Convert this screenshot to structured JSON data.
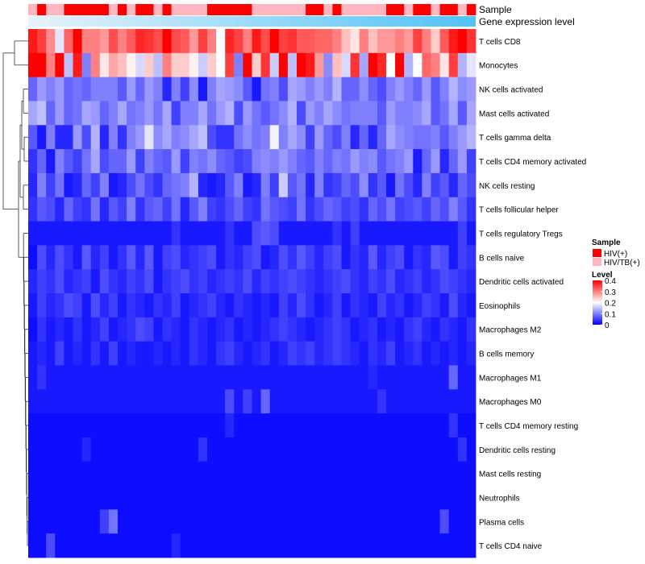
{
  "chart_data": {
    "type": "heatmap",
    "title": "",
    "annotations": [
      {
        "name": "Sample",
        "values": [
          "HIV/TB(+)",
          "HIV(+)",
          "HIV/TB(+)",
          "HIV/TB(+)",
          "HIV(+)",
          "HIV(+)",
          "HIV(+)",
          "HIV(+)",
          "HIV(+)",
          "HIV/TB(+)",
          "HIV(+)",
          "HIV/TB(+)",
          "HIV(+)",
          "HIV(+)",
          "HIV/TB(+)",
          "HIV(+)",
          "HIV/TB(+)",
          "HIV/TB(+)",
          "HIV/TB(+)",
          "HIV/TB(+)",
          "HIV(+)",
          "HIV(+)",
          "HIV(+)",
          "HIV(+)",
          "HIV(+)",
          "HIV/TB(+)",
          "HIV/TB(+)",
          "HIV/TB(+)",
          "HIV/TB(+)",
          "HIV/TB(+)",
          "HIV/TB(+)",
          "HIV(+)",
          "HIV(+)",
          "HIV/TB(+)",
          "HIV(+)",
          "HIV/TB(+)",
          "HIV/TB(+)",
          "HIV/TB(+)",
          "HIV/TB(+)",
          "HIV/TB(+)",
          "HIV(+)",
          "HIV(+)",
          "HIV/TB(+)",
          "HIV(+)",
          "HIV(+)",
          "HIV/TB(+)",
          "HIV(+)",
          "HIV(+)",
          "HIV/TB(+)",
          "HIV(+)"
        ]
      },
      {
        "name": "Gene expression level",
        "type": "gradient",
        "from": "#e8f3fb",
        "to": "#4fc3f7"
      }
    ],
    "rows": [
      "T cells CD8",
      "Monocytes",
      "NK cells activated",
      "Mast cells activated",
      "T cells gamma delta",
      "T cells CD4 memory activated",
      "NK cells resting",
      "T cells follicular helper",
      "T cells regulatory  Tregs",
      "B cells naive",
      "Dendritic cells activated",
      "Eosinophils",
      "Macrophages M2",
      "B cells memory",
      "Macrophages M1",
      "Macrophages M0",
      "T cells CD4 memory resting",
      "Dendritic cells resting",
      "Mast cells resting",
      "Neutrophils",
      "Plasma cells",
      "T cells CD4 naive"
    ],
    "n_samples": 50,
    "legend_sample": {
      "title": "Sample",
      "items": [
        {
          "label": "HIV(+)",
          "color": "#ff0000"
        },
        {
          "label": "HIV/TB(+)",
          "color": "#ffb6c1"
        }
      ]
    },
    "legend_level": {
      "title": "Level",
      "ticks": [
        0.4,
        0.3,
        0.2,
        0.1,
        0
      ],
      "range": [
        0,
        0.4
      ],
      "colors": [
        "#0000ff",
        "#ffffff",
        "#ff0000"
      ]
    },
    "matrix": [
      [
        0.38,
        0.35,
        0.29,
        0.18,
        0.32,
        0.4,
        0.3,
        0.3,
        0.28,
        0.34,
        0.3,
        0.33,
        0.37,
        0.36,
        0.34,
        0.4,
        0.34,
        0.33,
        0.28,
        0.35,
        0.3,
        0.2,
        0.37,
        0.35,
        0.3,
        0.38,
        0.34,
        0.4,
        0.35,
        0.36,
        0.33,
        0.33,
        0.32,
        0.32,
        0.3,
        0.25,
        0.22,
        0.3,
        0.25,
        0.28,
        0.28,
        0.3,
        0.28,
        0.35,
        0.3,
        0.24,
        0.33,
        0.38,
        0.4,
        0.36
      ],
      [
        0.4,
        0.4,
        0.3,
        0.4,
        0.15,
        0.38,
        0.1,
        0.3,
        0.22,
        0.27,
        0.25,
        0.21,
        0.17,
        0.24,
        0.15,
        0.3,
        0.24,
        0.24,
        0.21,
        0.16,
        0.24,
        0.2,
        0.35,
        0.1,
        0.4,
        0.24,
        0.36,
        0.16,
        0.4,
        0.15,
        0.4,
        0.38,
        0.28,
        0.11,
        0.25,
        0.17,
        0.36,
        0.13,
        0.4,
        0.37,
        0.2,
        0.4,
        0.14,
        0.2,
        0.32,
        0.3,
        0.22,
        0.35,
        0.14,
        0.18
      ],
      [
        0.08,
        0.12,
        0.1,
        0.12,
        0.08,
        0.09,
        0.08,
        0.1,
        0.1,
        0.1,
        0.07,
        0.12,
        0.08,
        0.12,
        0.1,
        0.03,
        0.1,
        0.05,
        0.11,
        0.02,
        0.1,
        0.13,
        0.12,
        0.11,
        0.07,
        0.02,
        0.09,
        0.1,
        0.06,
        0.13,
        0.12,
        0.1,
        0.12,
        0.1,
        0.14,
        0.08,
        0.08,
        0.11,
        0.08,
        0.06,
        0.1,
        0.12,
        0.1,
        0.08,
        0.12,
        0.07,
        0.1,
        0.14,
        0.11,
        0.12
      ],
      [
        0.13,
        0.15,
        0.08,
        0.12,
        0.08,
        0.09,
        0.13,
        0.12,
        0.08,
        0.1,
        0.13,
        0.09,
        0.1,
        0.12,
        0.09,
        0.13,
        0.05,
        0.1,
        0.1,
        0.13,
        0.09,
        0.12,
        0.14,
        0.06,
        0.12,
        0.09,
        0.07,
        0.09,
        0.11,
        0.14,
        0.06,
        0.12,
        0.1,
        0.13,
        0.11,
        0.09,
        0.1,
        0.1,
        0.1,
        0.07,
        0.12,
        0.1,
        0.1,
        0.11,
        0.13,
        0.07,
        0.09,
        0.13,
        0.07,
        0.13
      ],
      [
        0.07,
        0.02,
        0.1,
        0.03,
        0.03,
        0.12,
        0.06,
        0.14,
        0.03,
        0.1,
        0.04,
        0.1,
        0.12,
        0.18,
        0.11,
        0.13,
        0.1,
        0.11,
        0.13,
        0.15,
        0.06,
        0.04,
        0.04,
        0.09,
        0.11,
        0.09,
        0.1,
        0.19,
        0.1,
        0.13,
        0.11,
        0.05,
        0.12,
        0.08,
        0.06,
        0.1,
        0.03,
        0.08,
        0.03,
        0.08,
        0.13,
        0.11,
        0.1,
        0.09,
        0.09,
        0.1,
        0.07,
        0.1,
        0.12,
        0.14
      ],
      [
        0.04,
        0.08,
        0.02,
        0.1,
        0.07,
        0.05,
        0.09,
        0.13,
        0.06,
        0.08,
        0.08,
        0.12,
        0.05,
        0.1,
        0.08,
        0.07,
        0.12,
        0.05,
        0.1,
        0.09,
        0.11,
        0.08,
        0.07,
        0.05,
        0.06,
        0.1,
        0.11,
        0.1,
        0.12,
        0.1,
        0.08,
        0.07,
        0.1,
        0.08,
        0.1,
        0.09,
        0.12,
        0.1,
        0.11,
        0.07,
        0.09,
        0.1,
        0.12,
        0.02,
        0.08,
        0.12,
        0.03,
        0.08,
        0.12,
        0.05
      ],
      [
        0.03,
        0.1,
        0.05,
        0.09,
        0.02,
        0.03,
        0.08,
        0.05,
        0.1,
        0.02,
        0.03,
        0.06,
        0.09,
        0.06,
        0.04,
        0.08,
        0.09,
        0.1,
        0.14,
        0.03,
        0.02,
        0.03,
        0.07,
        0.1,
        0.02,
        0.03,
        0.1,
        0.05,
        0.16,
        0.07,
        0.09,
        0.03,
        0.1,
        0.04,
        0.05,
        0.08,
        0.06,
        0.11,
        0.04,
        0.07,
        0.02,
        0.09,
        0.06,
        0.03,
        0.1,
        0.05,
        0.07,
        0.03,
        0.08,
        0.06
      ],
      [
        0.04,
        0.07,
        0.06,
        0.03,
        0.08,
        0.05,
        0.04,
        0.09,
        0.03,
        0.07,
        0.05,
        0.1,
        0.04,
        0.07,
        0.08,
        0.05,
        0.09,
        0.03,
        0.07,
        0.1,
        0.05,
        0.04,
        0.06,
        0.08,
        0.05,
        0.04,
        0.09,
        0.07,
        0.06,
        0.05,
        0.09,
        0.04,
        0.06,
        0.08,
        0.07,
        0.05,
        0.06,
        0.04,
        0.08,
        0.06,
        0.09,
        0.05,
        0.06,
        0.07,
        0.05,
        0.08,
        0.06,
        0.1,
        0.07,
        0.04
      ],
      [
        0.02,
        0.02,
        0.02,
        0.02,
        0.02,
        0.02,
        0.02,
        0.02,
        0.02,
        0.02,
        0.02,
        0.02,
        0.02,
        0.02,
        0.02,
        0.02,
        0.04,
        0.02,
        0.02,
        0.02,
        0.02,
        0.02,
        0.04,
        0.02,
        0.02,
        0.06,
        0.07,
        0.06,
        0.02,
        0.02,
        0.02,
        0.02,
        0.02,
        0.02,
        0.04,
        0.02,
        0.05,
        0.02,
        0.02,
        0.02,
        0.02,
        0.02,
        0.02,
        0.02,
        0.02,
        0.02,
        0.02,
        0.02,
        0.05,
        0.02
      ],
      [
        0.01,
        0.06,
        0.03,
        0.06,
        0.04,
        0.02,
        0.07,
        0.03,
        0.05,
        0.02,
        0.04,
        0.07,
        0.03,
        0.07,
        0.02,
        0.05,
        0.06,
        0.03,
        0.04,
        0.05,
        0.06,
        0.02,
        0.04,
        0.03,
        0.05,
        0.06,
        0.02,
        0.03,
        0.06,
        0.04,
        0.07,
        0.05,
        0.03,
        0.05,
        0.06,
        0.02,
        0.04,
        0.03,
        0.07,
        0.03,
        0.05,
        0.06,
        0.02,
        0.04,
        0.03,
        0.07,
        0.06,
        0.02,
        0.05,
        0.04
      ],
      [
        0.03,
        0.05,
        0.04,
        0.06,
        0.03,
        0.04,
        0.05,
        0.02,
        0.06,
        0.04,
        0.03,
        0.05,
        0.04,
        0.06,
        0.02,
        0.04,
        0.05,
        0.06,
        0.04,
        0.05,
        0.03,
        0.04,
        0.05,
        0.04,
        0.06,
        0.03,
        0.05,
        0.04,
        0.05,
        0.06,
        0.05,
        0.04,
        0.03,
        0.04,
        0.05,
        0.06,
        0.04,
        0.03,
        0.05,
        0.04,
        0.06,
        0.03,
        0.04,
        0.05,
        0.03,
        0.04,
        0.06,
        0.05,
        0.04,
        0.03
      ],
      [
        0.02,
        0.05,
        0.03,
        0.04,
        0.06,
        0.05,
        0.02,
        0.06,
        0.03,
        0.05,
        0.02,
        0.04,
        0.03,
        0.02,
        0.04,
        0.03,
        0.05,
        0.02,
        0.03,
        0.04,
        0.05,
        0.03,
        0.02,
        0.04,
        0.03,
        0.02,
        0.03,
        0.02,
        0.05,
        0.03,
        0.06,
        0.04,
        0.02,
        0.03,
        0.05,
        0.02,
        0.04,
        0.03,
        0.02,
        0.05,
        0.03,
        0.04,
        0.02,
        0.03,
        0.05,
        0.04,
        0.02,
        0.06,
        0.03,
        0.02
      ],
      [
        0.01,
        0.04,
        0.02,
        0.03,
        0.02,
        0.04,
        0.02,
        0.03,
        0.05,
        0.02,
        0.03,
        0.04,
        0.06,
        0.05,
        0.02,
        0.04,
        0.03,
        0.02,
        0.04,
        0.03,
        0.02,
        0.03,
        0.04,
        0.02,
        0.03,
        0.02,
        0.03,
        0.04,
        0.05,
        0.04,
        0.03,
        0.02,
        0.03,
        0.04,
        0.05,
        0.04,
        0.02,
        0.03,
        0.04,
        0.02,
        0.03,
        0.02,
        0.04,
        0.05,
        0.03,
        0.02,
        0.04,
        0.03,
        0.02,
        0.04
      ],
      [
        0.02,
        0.03,
        0.02,
        0.05,
        0.02,
        0.03,
        0.02,
        0.04,
        0.02,
        0.05,
        0.02,
        0.03,
        0.02,
        0.02,
        0.03,
        0.02,
        0.03,
        0.02,
        0.04,
        0.03,
        0.02,
        0.04,
        0.05,
        0.03,
        0.02,
        0.03,
        0.04,
        0.02,
        0.03,
        0.05,
        0.04,
        0.05,
        0.03,
        0.04,
        0.05,
        0.04,
        0.03,
        0.02,
        0.04,
        0.03,
        0.05,
        0.02,
        0.03,
        0.04,
        0.02,
        0.03,
        0.02,
        0.03,
        0.02,
        0.03
      ],
      [
        0.02,
        0.04,
        0.02,
        0.02,
        0.02,
        0.02,
        0.02,
        0.02,
        0.02,
        0.02,
        0.02,
        0.02,
        0.02,
        0.02,
        0.02,
        0.02,
        0.02,
        0.02,
        0.02,
        0.02,
        0.02,
        0.02,
        0.02,
        0.02,
        0.02,
        0.02,
        0.02,
        0.02,
        0.02,
        0.02,
        0.02,
        0.02,
        0.02,
        0.02,
        0.02,
        0.02,
        0.02,
        0.02,
        0.03,
        0.02,
        0.02,
        0.02,
        0.02,
        0.02,
        0.02,
        0.02,
        0.02,
        0.08,
        0.02,
        0.02
      ],
      [
        0.02,
        0.02,
        0.02,
        0.02,
        0.02,
        0.02,
        0.02,
        0.02,
        0.02,
        0.02,
        0.02,
        0.02,
        0.02,
        0.02,
        0.02,
        0.02,
        0.02,
        0.02,
        0.02,
        0.02,
        0.02,
        0.02,
        0.06,
        0.02,
        0.05,
        0.02,
        0.08,
        0.02,
        0.02,
        0.02,
        0.02,
        0.02,
        0.02,
        0.02,
        0.02,
        0.02,
        0.02,
        0.02,
        0.02,
        0.04,
        0.02,
        0.02,
        0.02,
        0.02,
        0.02,
        0.02,
        0.02,
        0.02,
        0.02,
        0.02
      ],
      [
        0.01,
        0.01,
        0.01,
        0.01,
        0.01,
        0.01,
        0.01,
        0.01,
        0.01,
        0.01,
        0.01,
        0.01,
        0.01,
        0.01,
        0.01,
        0.01,
        0.01,
        0.01,
        0.01,
        0.01,
        0.01,
        0.01,
        0.03,
        0.01,
        0.01,
        0.01,
        0.01,
        0.01,
        0.01,
        0.01,
        0.01,
        0.01,
        0.01,
        0.01,
        0.01,
        0.01,
        0.01,
        0.01,
        0.01,
        0.01,
        0.01,
        0.01,
        0.01,
        0.01,
        0.01,
        0.01,
        0.01,
        0.04,
        0.01,
        0.01
      ],
      [
        0.01,
        0.01,
        0.01,
        0.01,
        0.01,
        0.01,
        0.03,
        0.01,
        0.01,
        0.01,
        0.01,
        0.01,
        0.01,
        0.01,
        0.01,
        0.01,
        0.01,
        0.01,
        0.01,
        0.04,
        0.01,
        0.01,
        0.01,
        0.01,
        0.01,
        0.01,
        0.01,
        0.01,
        0.01,
        0.01,
        0.01,
        0.01,
        0.01,
        0.01,
        0.01,
        0.01,
        0.01,
        0.01,
        0.01,
        0.01,
        0.01,
        0.01,
        0.01,
        0.01,
        0.01,
        0.01,
        0.01,
        0.01,
        0.04,
        0.01
      ],
      [
        0.01,
        0.01,
        0.01,
        0.01,
        0.01,
        0.01,
        0.01,
        0.01,
        0.01,
        0.01,
        0.01,
        0.01,
        0.01,
        0.01,
        0.01,
        0.01,
        0.01,
        0.01,
        0.01,
        0.01,
        0.01,
        0.01,
        0.01,
        0.01,
        0.01,
        0.01,
        0.01,
        0.01,
        0.01,
        0.01,
        0.01,
        0.01,
        0.01,
        0.01,
        0.01,
        0.01,
        0.01,
        0.01,
        0.01,
        0.01,
        0.01,
        0.01,
        0.01,
        0.01,
        0.01,
        0.01,
        0.01,
        0.01,
        0.01,
        0.01
      ],
      [
        0.01,
        0.01,
        0.01,
        0.01,
        0.01,
        0.01,
        0.01,
        0.01,
        0.01,
        0.01,
        0.01,
        0.01,
        0.01,
        0.01,
        0.01,
        0.01,
        0.01,
        0.01,
        0.01,
        0.01,
        0.01,
        0.01,
        0.01,
        0.01,
        0.01,
        0.01,
        0.01,
        0.01,
        0.01,
        0.01,
        0.01,
        0.01,
        0.01,
        0.01,
        0.01,
        0.01,
        0.01,
        0.01,
        0.01,
        0.01,
        0.01,
        0.01,
        0.01,
        0.01,
        0.01,
        0.01,
        0.01,
        0.01,
        0.01,
        0.01
      ],
      [
        0.01,
        0.01,
        0.01,
        0.01,
        0.01,
        0.01,
        0.01,
        0.01,
        0.05,
        0.09,
        0.01,
        0.01,
        0.01,
        0.01,
        0.01,
        0.01,
        0.01,
        0.01,
        0.01,
        0.01,
        0.01,
        0.01,
        0.01,
        0.01,
        0.01,
        0.01,
        0.01,
        0.01,
        0.01,
        0.01,
        0.01,
        0.01,
        0.01,
        0.01,
        0.01,
        0.01,
        0.01,
        0.01,
        0.01,
        0.01,
        0.01,
        0.01,
        0.01,
        0.01,
        0.01,
        0.01,
        0.06,
        0.01,
        0.01,
        0.01
      ],
      [
        0.01,
        0.01,
        0.06,
        0.01,
        0.01,
        0.01,
        0.01,
        0.01,
        0.01,
        0.01,
        0.01,
        0.01,
        0.01,
        0.01,
        0.01,
        0.01,
        0.03,
        0.01,
        0.01,
        0.01,
        0.01,
        0.01,
        0.01,
        0.01,
        0.01,
        0.01,
        0.01,
        0.01,
        0.01,
        0.01,
        0.01,
        0.01,
        0.01,
        0.01,
        0.01,
        0.01,
        0.01,
        0.01,
        0.01,
        0.01,
        0.01,
        0.01,
        0.01,
        0.01,
        0.01,
        0.01,
        0.01,
        0.01,
        0.01,
        0.01
      ]
    ]
  }
}
